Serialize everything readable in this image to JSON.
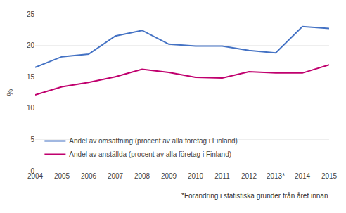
{
  "chart_data": {
    "type": "line",
    "ylabel": "%",
    "categories": [
      "2004",
      "2005",
      "2006",
      "2007",
      "2008",
      "2009",
      "2010",
      "2011",
      "2012",
      "2013*",
      "2014",
      "2015"
    ],
    "series": [
      {
        "name": "Andel av omsättning (procent av alla företag i Finland)",
        "color": "#4472C4",
        "values": [
          16.5,
          18.2,
          18.6,
          21.5,
          22.4,
          20.2,
          19.9,
          19.9,
          19.2,
          18.8,
          23.0,
          22.7
        ]
      },
      {
        "name": "Andel av anställda (procent av alla företag i Finland)",
        "color": "#C0006E",
        "values": [
          12.1,
          13.4,
          14.1,
          15.0,
          16.2,
          15.7,
          14.9,
          14.8,
          15.8,
          15.6,
          15.6,
          16.9
        ]
      }
    ],
    "ylim": [
      0,
      25
    ],
    "yticks": [
      0,
      5,
      10,
      15,
      20,
      25
    ],
    "grid": true,
    "legend": "lower left",
    "annotations": [
      "*Förändring i statistiska grunder från året innan"
    ]
  }
}
